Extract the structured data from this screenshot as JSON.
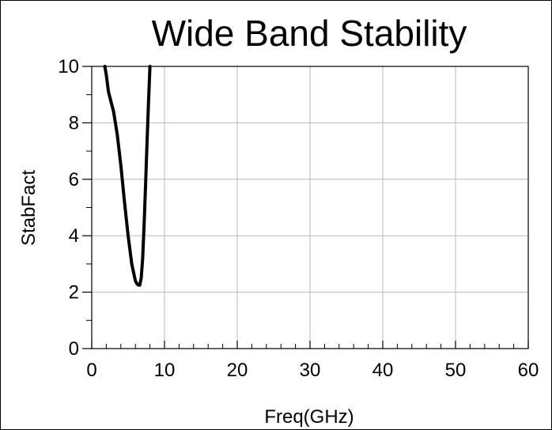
{
  "chart_data": {
    "type": "line",
    "title": "Wide Band Stability",
    "xlabel": "Freq(GHz)",
    "ylabel": "StabFact",
    "xlim": [
      0,
      60
    ],
    "ylim": [
      0,
      10
    ],
    "x_ticks": [
      0,
      10,
      20,
      30,
      40,
      50,
      60
    ],
    "y_ticks": [
      0,
      2,
      4,
      6,
      8,
      10
    ],
    "grid": true,
    "series": [
      {
        "color": "#000000",
        "x": [
          1.8,
          2.0,
          2.3,
          2.6,
          3.0,
          3.5,
          4.0,
          4.5,
          5.0,
          5.5,
          6.0,
          6.2,
          6.4,
          6.6,
          6.8,
          7.0,
          7.2,
          7.4,
          7.6,
          7.8,
          8.0
        ],
        "y": [
          10.0,
          9.7,
          9.1,
          8.8,
          8.4,
          7.6,
          6.5,
          5.2,
          4.0,
          3.0,
          2.4,
          2.3,
          2.25,
          2.25,
          2.5,
          3.2,
          4.4,
          5.8,
          7.3,
          8.7,
          10.0
        ]
      }
    ]
  }
}
